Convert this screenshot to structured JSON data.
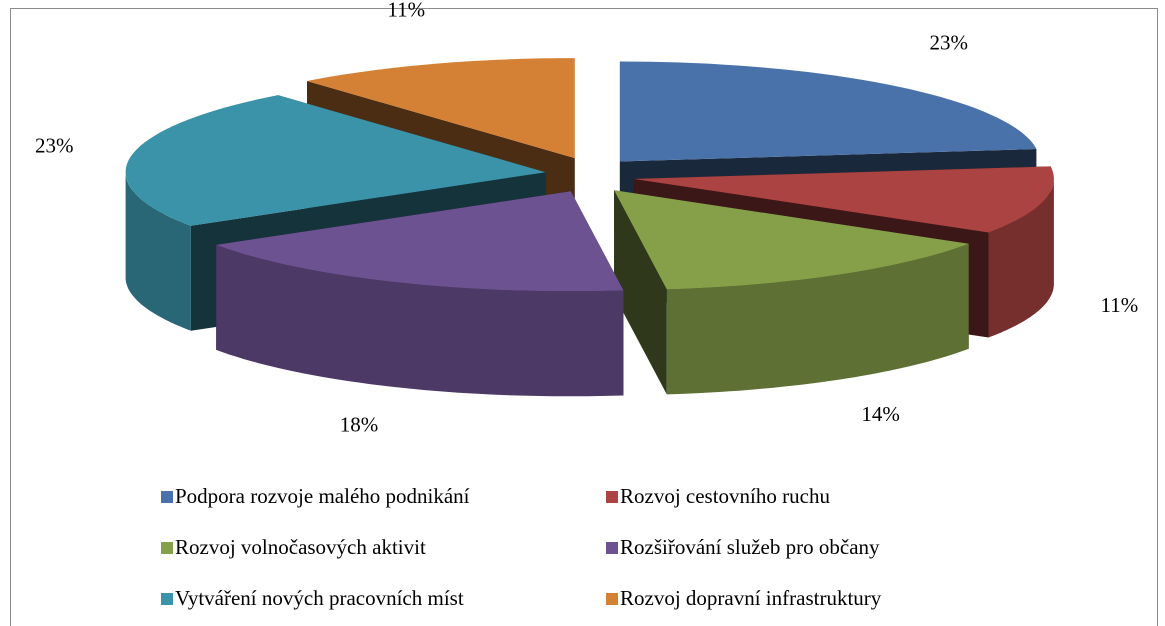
{
  "chart_data": {
    "type": "pie",
    "categories": [
      "Podpora rozvoje malého podnikání",
      "Rozvoj cestovního ruchu",
      "Rozvoj volnočasových aktivit",
      "Rozšiřování služeb pro občany",
      "Vytváření nových pracovních míst",
      "Rozvoj dopravní infrastruktury"
    ],
    "values": [
      23,
      11,
      14,
      18,
      23,
      11
    ],
    "value_labels": [
      "23%",
      "11%",
      "14%",
      "18%",
      "23%",
      "11%"
    ],
    "colors": [
      "#4a72aa",
      "#aa4341",
      "#86a04a",
      "#6c5291",
      "#3a93a8",
      "#d48136"
    ],
    "legend": "bottom"
  }
}
